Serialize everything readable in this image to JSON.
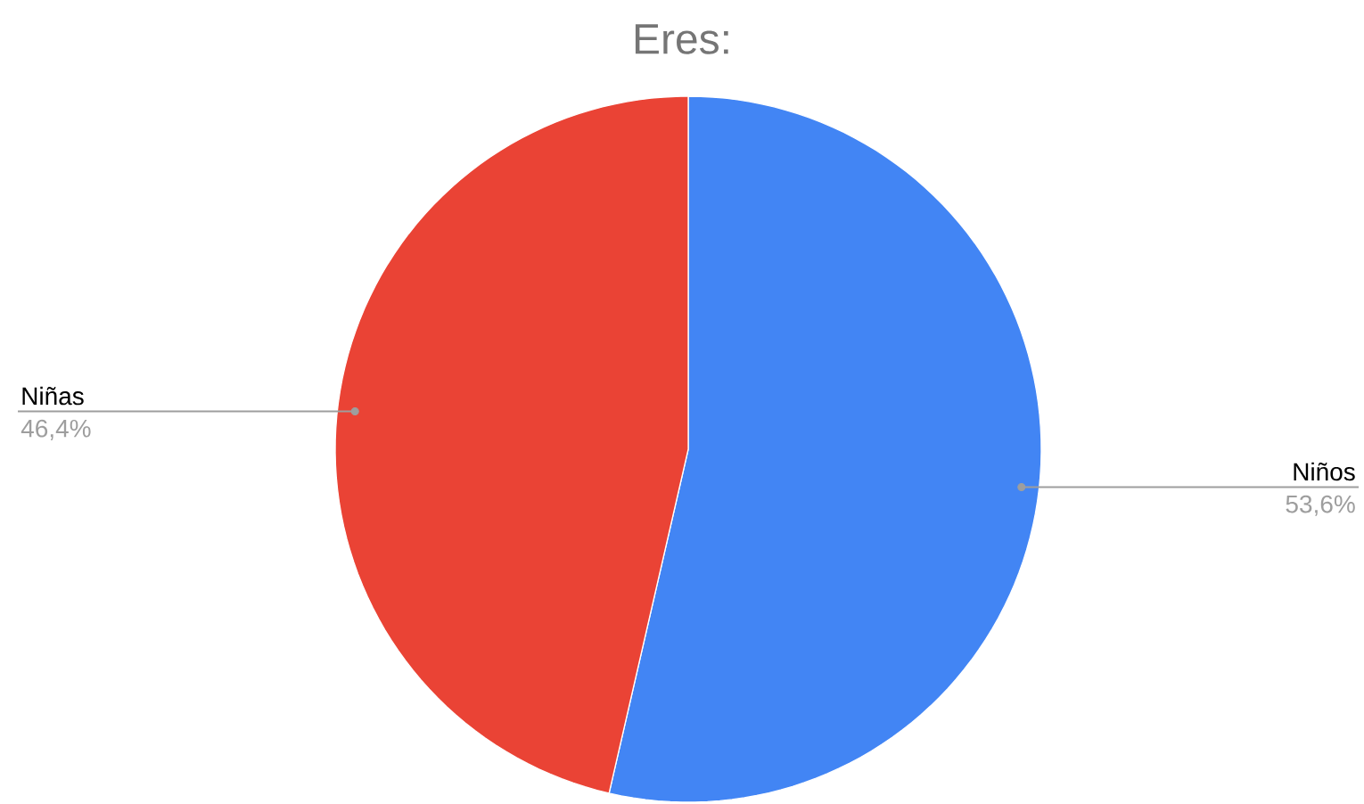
{
  "chart_data": {
    "type": "pie",
    "title": "Eres:",
    "categories": [
      "Niños",
      "Niñas"
    ],
    "values": [
      53.6,
      46.4
    ],
    "colors": [
      "#4285f4",
      "#ea4335"
    ],
    "value_labels": [
      "53,6%",
      "46,4%"
    ]
  }
}
